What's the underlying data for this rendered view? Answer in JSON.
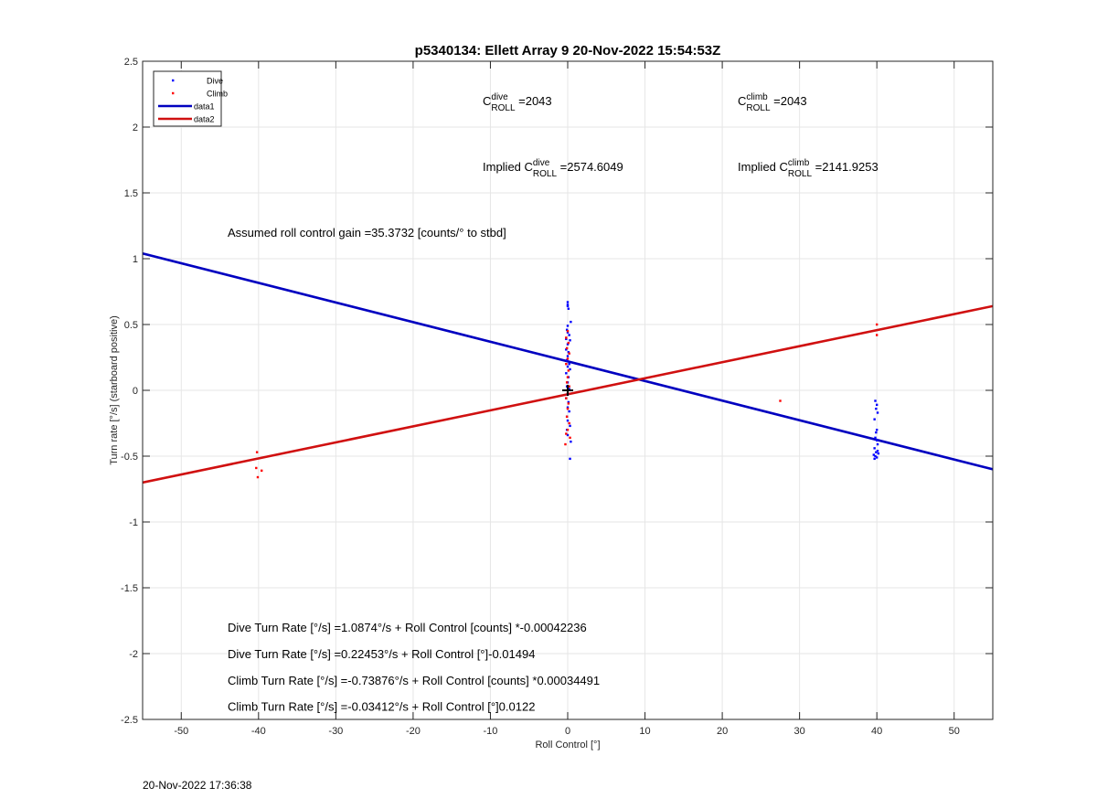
{
  "footer_timestamp": "20-Nov-2022 17:36:38",
  "chart_data": {
    "type": "scatter",
    "title": "p5340134: Ellett Array 9 20-Nov-2022 15:54:53Z",
    "xlabel": "Roll Control [°]",
    "ylabel": "Turn rate [°/s] (starboard positive)",
    "xlim": [
      -55,
      55
    ],
    "ylim": [
      -2.5,
      2.5
    ],
    "xticks": [
      -50,
      -40,
      -30,
      -20,
      -10,
      0,
      10,
      20,
      30,
      40,
      50
    ],
    "yticks": [
      -2.5,
      -2,
      -1.5,
      -1,
      -0.5,
      0,
      0.5,
      1,
      1.5,
      2,
      2.5
    ],
    "grid": true,
    "legend": {
      "position": "top-left",
      "entries": [
        {
          "label": "Dive",
          "marker": "dot",
          "color": "#0000ff"
        },
        {
          "label": "Climb",
          "marker": "dot",
          "color": "#ff0000"
        },
        {
          "label": "data1",
          "marker": "line",
          "color": "#0000c0"
        },
        {
          "label": "data2",
          "marker": "line",
          "color": "#d01010"
        }
      ]
    },
    "series": [
      {
        "name": "Dive",
        "kind": "points",
        "color": "#0000ff",
        "points": [
          [
            0,
            0.67
          ],
          [
            0,
            0.65
          ],
          [
            0,
            0.64
          ],
          [
            0.1,
            0.62
          ],
          [
            0.4,
            0.52
          ],
          [
            0,
            0.49
          ],
          [
            -0.1,
            0.46
          ],
          [
            0,
            0.44
          ],
          [
            0.2,
            0.42
          ],
          [
            -0.2,
            0.39
          ],
          [
            0.3,
            0.38
          ],
          [
            0,
            0.35
          ],
          [
            -0.2,
            0.31
          ],
          [
            0.1,
            0.29
          ],
          [
            0,
            0.26
          ],
          [
            -0.1,
            0.23
          ],
          [
            0.2,
            0.2
          ],
          [
            0,
            0.18
          ],
          [
            0.3,
            0.16
          ],
          [
            -0.2,
            0.13
          ],
          [
            0.1,
            0.1
          ],
          [
            0,
            0.06
          ],
          [
            -0.1,
            0.03
          ],
          [
            0.2,
            0.01
          ],
          [
            0,
            -0.03
          ],
          [
            -0.2,
            -0.06
          ],
          [
            0.1,
            -0.09
          ],
          [
            0,
            -0.13
          ],
          [
            0.2,
            -0.16
          ],
          [
            -0.1,
            -0.2
          ],
          [
            0,
            -0.23
          ],
          [
            0.3,
            -0.27
          ],
          [
            -0.1,
            -0.3
          ],
          [
            0,
            -0.34
          ],
          [
            0.4,
            -0.39
          ],
          [
            0.3,
            -0.52
          ],
          [
            39.8,
            -0.08
          ],
          [
            40,
            -0.11
          ],
          [
            39.9,
            -0.14
          ],
          [
            40.1,
            -0.17
          ],
          [
            39.7,
            -0.22
          ],
          [
            40,
            -0.3
          ],
          [
            39.9,
            -0.32
          ],
          [
            39.8,
            -0.36
          ],
          [
            40,
            -0.38
          ],
          [
            40.1,
            -0.41
          ],
          [
            39.7,
            -0.44
          ],
          [
            39.9,
            -0.47
          ],
          [
            40.2,
            -0.48
          ],
          [
            39.6,
            -0.49
          ],
          [
            39.8,
            -0.5
          ],
          [
            40,
            -0.51
          ],
          [
            39.7,
            -0.52
          ],
          [
            40.1,
            -0.46
          ]
        ]
      },
      {
        "name": "Climb",
        "kind": "points",
        "color": "#ff0000",
        "points": [
          [
            -40.2,
            -0.47
          ],
          [
            -40.3,
            -0.59
          ],
          [
            -39.6,
            -0.61
          ],
          [
            -40.1,
            -0.66
          ],
          [
            0,
            0.45
          ],
          [
            -0.2,
            0.4
          ],
          [
            0.1,
            0.36
          ],
          [
            -0.1,
            0.32
          ],
          [
            0.2,
            0.28
          ],
          [
            0,
            0.24
          ],
          [
            -0.2,
            0.2
          ],
          [
            0.1,
            0.15
          ],
          [
            0,
            0.1
          ],
          [
            -0.1,
            0.06
          ],
          [
            0.2,
            0.03
          ],
          [
            0,
            -0.02
          ],
          [
            -0.2,
            -0.06
          ],
          [
            0.1,
            -0.1
          ],
          [
            0,
            -0.14
          ],
          [
            -0.1,
            -0.2
          ],
          [
            0.2,
            -0.25
          ],
          [
            0,
            -0.3
          ],
          [
            -0.2,
            -0.33
          ],
          [
            0.3,
            -0.36
          ],
          [
            -0.3,
            -0.41
          ],
          [
            27.5,
            -0.08
          ],
          [
            40,
            0.5
          ],
          [
            40,
            0.42
          ]
        ]
      },
      {
        "name": "data1",
        "kind": "line",
        "color": "#0000c0",
        "x": [
          -55,
          55
        ],
        "y": [
          1.04,
          -0.6
        ]
      },
      {
        "name": "data2",
        "kind": "line",
        "color": "#d01010",
        "x": [
          -55,
          55
        ],
        "y": [
          -0.7,
          0.64
        ]
      },
      {
        "name": "mean",
        "kind": "cross",
        "color": "#000000",
        "points": [
          [
            0,
            0
          ]
        ]
      }
    ],
    "annotations": [
      {
        "id": "c-dive",
        "x": -11,
        "y": 2.2,
        "prefix": "C",
        "sup": "dive",
        "sub": "ROLL",
        "suffix": " =2043"
      },
      {
        "id": "c-climb",
        "x": 22,
        "y": 2.2,
        "prefix": "C",
        "sup": "climb",
        "sub": "ROLL",
        "suffix": " =2043"
      },
      {
        "id": "implied-dive",
        "x": -11,
        "y": 1.7,
        "prefix": "Implied C",
        "sup": "dive",
        "sub": "ROLL",
        "suffix": " =2574.6049"
      },
      {
        "id": "implied-climb",
        "x": 22,
        "y": 1.7,
        "prefix": "Implied C",
        "sup": "climb",
        "sub": "ROLL",
        "suffix": " =2141.9253"
      },
      {
        "id": "gain",
        "x": -44,
        "y": 1.2,
        "text": "Assumed roll control gain =35.3732 [counts/° to stbd]"
      },
      {
        "id": "eq1",
        "x": -44,
        "y": -1.8,
        "text": "Dive Turn Rate [°/s] =1.0874°/s + Roll Control [counts] *-0.00042236"
      },
      {
        "id": "eq2",
        "x": -44,
        "y": -2.0,
        "text": "Dive Turn Rate [°/s] =0.22453°/s + Roll Control [°]-0.01494"
      },
      {
        "id": "eq3",
        "x": -44,
        "y": -2.2,
        "text": "Climb Turn Rate [°/s] =-0.73876°/s + Roll Control [counts] *0.00034491"
      },
      {
        "id": "eq4",
        "x": -44,
        "y": -2.4,
        "text": "Climb Turn Rate [°/s] =-0.03412°/s + Roll Control [°]0.0122"
      }
    ]
  }
}
